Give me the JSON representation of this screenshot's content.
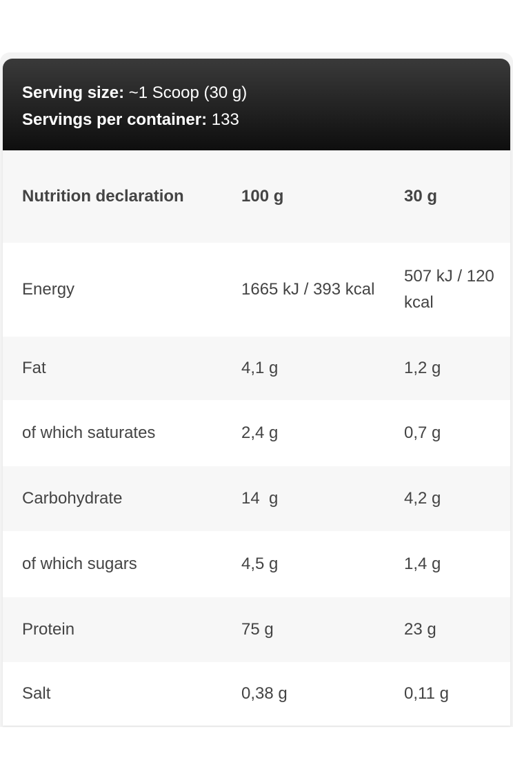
{
  "header": {
    "serving_size_label": "Serving size:",
    "serving_size": "~1 Scoop (30 g)",
    "servings_label": "Servings per container:",
    "servings": "133"
  },
  "table": {
    "columns": [
      "Nutrition declaration",
      "100 g",
      "30 g"
    ],
    "rows": [
      [
        "Energy",
        "1665 kJ / 393 kcal",
        "507 kJ / 120 kcal"
      ],
      [
        "Fat",
        "4,1 g",
        "1,2 g"
      ],
      [
        "of which saturates",
        "2,4 g",
        "0,7 g"
      ],
      [
        "Carbohydrate",
        "14  g",
        "4,2 g"
      ],
      [
        "of which sugars",
        "4,5 g",
        "1,4 g"
      ],
      [
        "Protein",
        "75 g",
        "23 g"
      ],
      [
        "Salt",
        "0,38 g",
        "0,11 g"
      ]
    ]
  }
}
